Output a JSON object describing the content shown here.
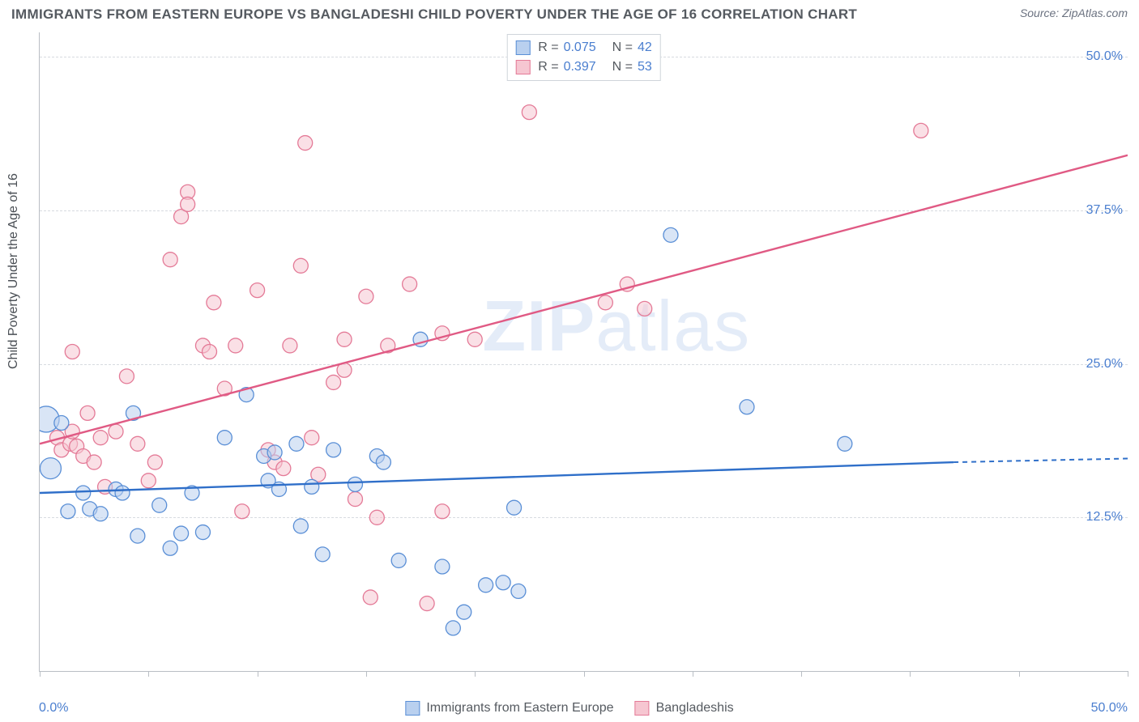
{
  "title": "IMMIGRANTS FROM EASTERN EUROPE VS BANGLADESHI CHILD POVERTY UNDER THE AGE OF 16 CORRELATION CHART",
  "source": "Source: ZipAtlas.com",
  "ylabel": "Child Poverty Under the Age of 16",
  "watermark_a": "ZIP",
  "watermark_b": "atlas",
  "chart": {
    "type": "scatter",
    "xlim": [
      0,
      50
    ],
    "ylim": [
      0,
      52
    ],
    "x_tick_positions": [
      0,
      5,
      10,
      15,
      20,
      25,
      30,
      35,
      40,
      45,
      50
    ],
    "y_gridlines": [
      12.5,
      25.0,
      37.5,
      50.0
    ],
    "y_tick_labels": [
      "12.5%",
      "25.0%",
      "37.5%",
      "50.0%"
    ],
    "x_axis_left_label": "0.0%",
    "x_axis_right_label": "50.0%",
    "grid_color": "#d7dbe0",
    "axis_color": "#b9bec4",
    "background_color": "#ffffff",
    "tick_label_color": "#4a7ecf",
    "label_fontsize": 16,
    "title_fontsize": 17,
    "title_color": "#555a60"
  },
  "series": {
    "blue": {
      "label": "Immigrants from Eastern Europe",
      "fill": "#b9d0ef",
      "stroke": "#5a8fd6",
      "fill_opacity": 0.55,
      "line_color": "#2f6fc9",
      "R": "0.075",
      "N": "42",
      "marker_r": 9,
      "trend": {
        "x1": 0,
        "y1": 14.5,
        "x2": 42,
        "y2": 17.0,
        "dash_from_x": 42,
        "dash_to_x": 50,
        "dash_y2": 17.3
      },
      "points": [
        {
          "x": 0.3,
          "y": 20.5,
          "r": 16
        },
        {
          "x": 0.5,
          "y": 16.5,
          "r": 13
        },
        {
          "x": 1.0,
          "y": 20.2
        },
        {
          "x": 1.3,
          "y": 13.0
        },
        {
          "x": 2.0,
          "y": 14.5
        },
        {
          "x": 2.3,
          "y": 13.2
        },
        {
          "x": 2.8,
          "y": 12.8
        },
        {
          "x": 3.5,
          "y": 14.8
        },
        {
          "x": 3.8,
          "y": 14.5
        },
        {
          "x": 4.3,
          "y": 21.0
        },
        {
          "x": 4.5,
          "y": 11.0
        },
        {
          "x": 5.5,
          "y": 13.5
        },
        {
          "x": 6.0,
          "y": 10.0
        },
        {
          "x": 6.5,
          "y": 11.2
        },
        {
          "x": 7.0,
          "y": 14.5
        },
        {
          "x": 7.5,
          "y": 11.3
        },
        {
          "x": 8.5,
          "y": 19.0
        },
        {
          "x": 9.5,
          "y": 22.5
        },
        {
          "x": 10.3,
          "y": 17.5
        },
        {
          "x": 10.8,
          "y": 17.8
        },
        {
          "x": 10.5,
          "y": 15.5
        },
        {
          "x": 11.0,
          "y": 14.8
        },
        {
          "x": 11.8,
          "y": 18.5
        },
        {
          "x": 12.0,
          "y": 11.8
        },
        {
          "x": 12.5,
          "y": 15.0
        },
        {
          "x": 13.0,
          "y": 9.5
        },
        {
          "x": 13.5,
          "y": 18.0
        },
        {
          "x": 15.5,
          "y": 17.5
        },
        {
          "x": 15.8,
          "y": 17.0
        },
        {
          "x": 16.5,
          "y": 9.0
        },
        {
          "x": 17.5,
          "y": 27.0
        },
        {
          "x": 18.5,
          "y": 8.5
        },
        {
          "x": 19.0,
          "y": 3.5
        },
        {
          "x": 19.5,
          "y": 4.8
        },
        {
          "x": 20.5,
          "y": 7.0
        },
        {
          "x": 21.3,
          "y": 7.2
        },
        {
          "x": 21.8,
          "y": 13.3
        },
        {
          "x": 22.0,
          "y": 6.5
        },
        {
          "x": 29.0,
          "y": 35.5
        },
        {
          "x": 32.5,
          "y": 21.5
        },
        {
          "x": 37.0,
          "y": 18.5
        },
        {
          "x": 14.5,
          "y": 15.2
        }
      ]
    },
    "pink": {
      "label": "Bangladeshis",
      "fill": "#f6c6d1",
      "stroke": "#e47a97",
      "fill_opacity": 0.55,
      "line_color": "#e05a84",
      "R": "0.397",
      "N": "53",
      "marker_r": 9,
      "trend": {
        "x1": 0,
        "y1": 18.5,
        "x2": 50,
        "y2": 42.0
      },
      "points": [
        {
          "x": 0.8,
          "y": 19.0
        },
        {
          "x": 1.0,
          "y": 18.0
        },
        {
          "x": 1.4,
          "y": 18.5
        },
        {
          "x": 1.5,
          "y": 19.5
        },
        {
          "x": 1.7,
          "y": 18.3
        },
        {
          "x": 2.0,
          "y": 17.5
        },
        {
          "x": 1.5,
          "y": 26.0
        },
        {
          "x": 2.2,
          "y": 21.0
        },
        {
          "x": 2.5,
          "y": 17.0
        },
        {
          "x": 2.8,
          "y": 19.0
        },
        {
          "x": 3.0,
          "y": 15.0
        },
        {
          "x": 3.5,
          "y": 19.5
        },
        {
          "x": 4.0,
          "y": 24.0
        },
        {
          "x": 4.5,
          "y": 18.5
        },
        {
          "x": 5.3,
          "y": 17.0
        },
        {
          "x": 6.0,
          "y": 33.5
        },
        {
          "x": 6.5,
          "y": 37.0
        },
        {
          "x": 6.8,
          "y": 39.0
        },
        {
          "x": 6.8,
          "y": 38.0
        },
        {
          "x": 7.5,
          "y": 26.5
        },
        {
          "x": 7.8,
          "y": 26.0
        },
        {
          "x": 8.0,
          "y": 30.0
        },
        {
          "x": 8.5,
          "y": 23.0
        },
        {
          "x": 9.0,
          "y": 26.5
        },
        {
          "x": 9.3,
          "y": 13.0
        },
        {
          "x": 10.0,
          "y": 31.0
        },
        {
          "x": 10.5,
          "y": 18.0
        },
        {
          "x": 10.8,
          "y": 17.0
        },
        {
          "x": 11.2,
          "y": 16.5
        },
        {
          "x": 11.5,
          "y": 26.5
        },
        {
          "x": 12.0,
          "y": 33.0
        },
        {
          "x": 12.2,
          "y": 43.0
        },
        {
          "x": 12.5,
          "y": 19.0
        },
        {
          "x": 12.8,
          "y": 16.0
        },
        {
          "x": 13.5,
          "y": 23.5
        },
        {
          "x": 14.0,
          "y": 27.0
        },
        {
          "x": 14.0,
          "y": 24.5
        },
        {
          "x": 14.5,
          "y": 14.0
        },
        {
          "x": 15.0,
          "y": 30.5
        },
        {
          "x": 15.2,
          "y": 6.0
        },
        {
          "x": 15.5,
          "y": 12.5
        },
        {
          "x": 16.0,
          "y": 26.5
        },
        {
          "x": 17.0,
          "y": 31.5
        },
        {
          "x": 17.8,
          "y": 5.5
        },
        {
          "x": 18.5,
          "y": 13.0
        },
        {
          "x": 18.5,
          "y": 27.5
        },
        {
          "x": 20.0,
          "y": 27.0
        },
        {
          "x": 22.5,
          "y": 45.5
        },
        {
          "x": 26.0,
          "y": 30.0
        },
        {
          "x": 27.0,
          "y": 31.5
        },
        {
          "x": 27.8,
          "y": 29.5
        },
        {
          "x": 40.5,
          "y": 44.0
        },
        {
          "x": 5.0,
          "y": 15.5
        }
      ]
    }
  },
  "legend": {
    "r_label": "R =",
    "n_label": "N ="
  }
}
